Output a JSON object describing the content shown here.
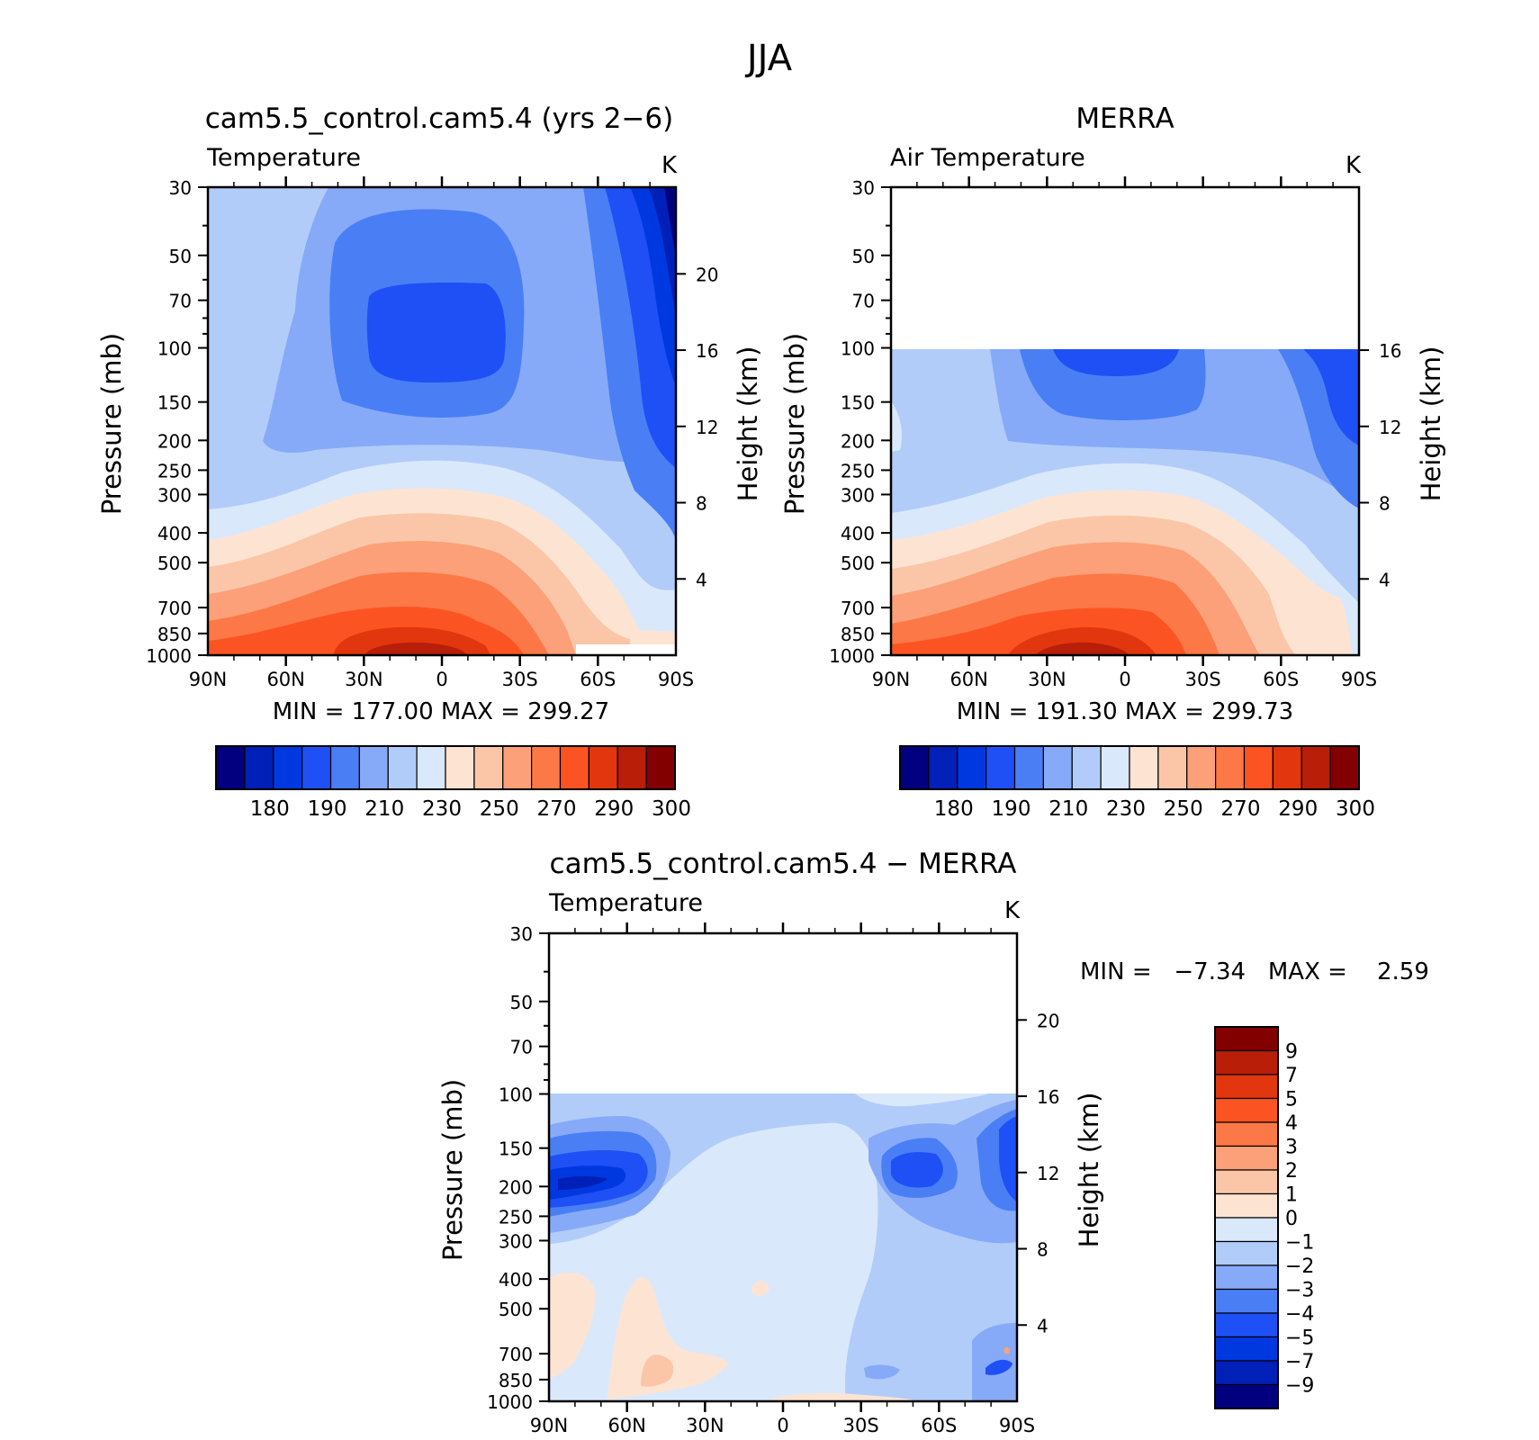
{
  "figure_title": "JJA",
  "panels": [
    {
      "id": "model",
      "title": "cam5.5_control.cam5.4 (yrs 2−6)",
      "left_label": "Temperature",
      "units": "K",
      "ylabel": "Pressure (mb)",
      "right_ylabel": "Height (km)",
      "minmax": "MIN =  177.00   MAX =  299.27"
    },
    {
      "id": "obs",
      "title": "MERRA",
      "left_label": "Air Temperature",
      "units": "K",
      "ylabel": "Pressure (mb)",
      "right_ylabel": "Height (km)",
      "minmax": "MIN =  191.30   MAX =  299.73"
    },
    {
      "id": "diff",
      "title": "cam5.5_control.cam5.4 − MERRA",
      "left_label": "Temperature",
      "units": "K",
      "ylabel": "Pressure (mb)",
      "right_ylabel": "Height (km)",
      "minmax": "MIN =   −7.34   MAX =    2.59"
    }
  ],
  "chart_data": [
    {
      "type": "heatmap",
      "subtype": "filled contour (latitude–pressure)",
      "title": "cam5.5_control.cam5.4 (yrs 2−6)",
      "variable": "Temperature",
      "units": "K",
      "xlabel": "",
      "ylabel": "Pressure (mb)",
      "y2label": "Height (km)",
      "x_ticks": [
        "90N",
        "60N",
        "30N",
        "0",
        "30S",
        "60S",
        "90S"
      ],
      "y_ticks": [
        30,
        50,
        70,
        100,
        150,
        200,
        250,
        300,
        400,
        500,
        700,
        850,
        1000
      ],
      "y2_ticks": [
        4,
        8,
        12,
        16,
        20
      ],
      "y_scale": "log",
      "y_inverted": true,
      "min": 177.0,
      "max": 299.27,
      "contour_levels": [
        180,
        185,
        190,
        200,
        210,
        220,
        230,
        240,
        250,
        260,
        270,
        280,
        290,
        295,
        300
      ],
      "colorbar_labels": [
        "180",
        "190",
        "210",
        "230",
        "250",
        "270",
        "290",
        "300"
      ],
      "colors": [
        "#02007f",
        "#0020b8",
        "#0038e0",
        "#1e50f5",
        "#4a7ef5",
        "#86aaf8",
        "#b2ccfa",
        "#dae8fc",
        "#fde4d2",
        "#fbc6a8",
        "#fba078",
        "#fc7846",
        "#fb5422",
        "#e2360e",
        "#b81e08",
        "#820000"
      ]
    },
    {
      "type": "heatmap",
      "subtype": "filled contour (latitude–pressure)",
      "title": "MERRA",
      "variable": "Air Temperature",
      "units": "K",
      "xlabel": "",
      "ylabel": "Pressure (mb)",
      "y2label": "Height (km)",
      "x_ticks": [
        "90N",
        "60N",
        "30N",
        "0",
        "30S",
        "60S",
        "90S"
      ],
      "y_ticks": [
        30,
        50,
        70,
        100,
        150,
        200,
        250,
        300,
        400,
        500,
        700,
        850,
        1000
      ],
      "y2_ticks": [
        4,
        8,
        12,
        16
      ],
      "y_scale": "log",
      "y_inverted": true,
      "data_top_mb": 100,
      "min": 191.3,
      "max": 299.73,
      "contour_levels": [
        180,
        185,
        190,
        200,
        210,
        220,
        230,
        240,
        250,
        260,
        270,
        280,
        290,
        295,
        300
      ],
      "colorbar_labels": [
        "180",
        "190",
        "210",
        "230",
        "250",
        "270",
        "290",
        "300"
      ]
    },
    {
      "type": "heatmap",
      "subtype": "filled contour (latitude–pressure)",
      "title": "cam5.5_control.cam5.4 − MERRA",
      "variable": "Temperature",
      "units": "K",
      "xlabel": "",
      "ylabel": "Pressure (mb)",
      "y2label": "Height (km)",
      "x_ticks": [
        "90N",
        "60N",
        "30N",
        "0",
        "30S",
        "60S",
        "90S"
      ],
      "y_ticks": [
        30,
        50,
        70,
        100,
        150,
        200,
        250,
        300,
        400,
        500,
        700,
        850,
        1000
      ],
      "y2_ticks": [
        4,
        8,
        12,
        16,
        20
      ],
      "y_scale": "log",
      "y_inverted": true,
      "data_top_mb": 100,
      "min": -7.34,
      "max": 2.59,
      "contour_levels": [
        -9,
        -7,
        -5,
        -4,
        -3,
        -2,
        -1,
        0,
        1,
        2,
        3,
        4,
        5,
        7,
        9
      ],
      "colorbar_labels": [
        "9",
        "7",
        "5",
        "4",
        "3",
        "2",
        "1",
        "0",
        "−1",
        "−2",
        "−3",
        "−4",
        "−5",
        "−7",
        "−9"
      ],
      "colors_top_to_bottom": [
        "#820000",
        "#b81e08",
        "#e2360e",
        "#fb5422",
        "#fc7846",
        "#fba078",
        "#fbc6a8",
        "#fde4d2",
        "#dae8fc",
        "#b2ccfa",
        "#86aaf8",
        "#4a7ef5",
        "#1e50f5",
        "#0038e0",
        "#0020b8",
        "#02007f"
      ]
    }
  ]
}
